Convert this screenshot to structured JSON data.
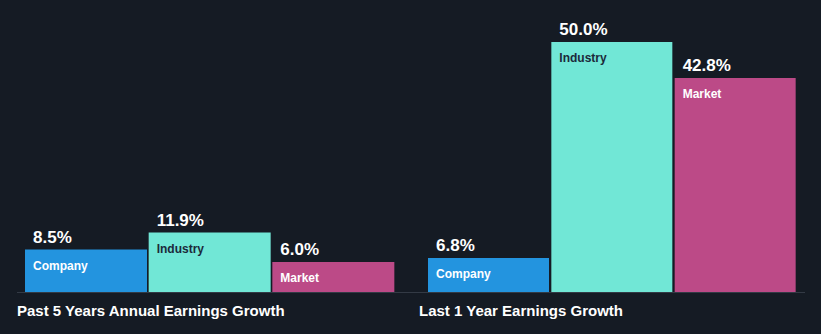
{
  "chart_data": [
    {
      "type": "bar",
      "title": "Past 5 Years Annual Earnings Growth",
      "categories": [
        "Company",
        "Industry",
        "Market"
      ],
      "values": [
        8.5,
        11.9,
        6.0
      ],
      "value_labels": [
        "8.5%",
        "11.9%",
        "6.0%"
      ],
      "colors": [
        "#2394df",
        "#71e7d6",
        "#bc4a87"
      ],
      "data_labels": true,
      "tick_labels": false
    },
    {
      "type": "bar",
      "title": "Last 1 Year Earnings Growth",
      "categories": [
        "Company",
        "Industry",
        "Market"
      ],
      "values": [
        6.8,
        50.0,
        42.8
      ],
      "value_labels": [
        "6.8%",
        "50.0%",
        "42.8%"
      ],
      "colors": [
        "#2394df",
        "#71e7d6",
        "#bc4a87"
      ],
      "data_labels": true,
      "tick_labels": false
    }
  ]
}
